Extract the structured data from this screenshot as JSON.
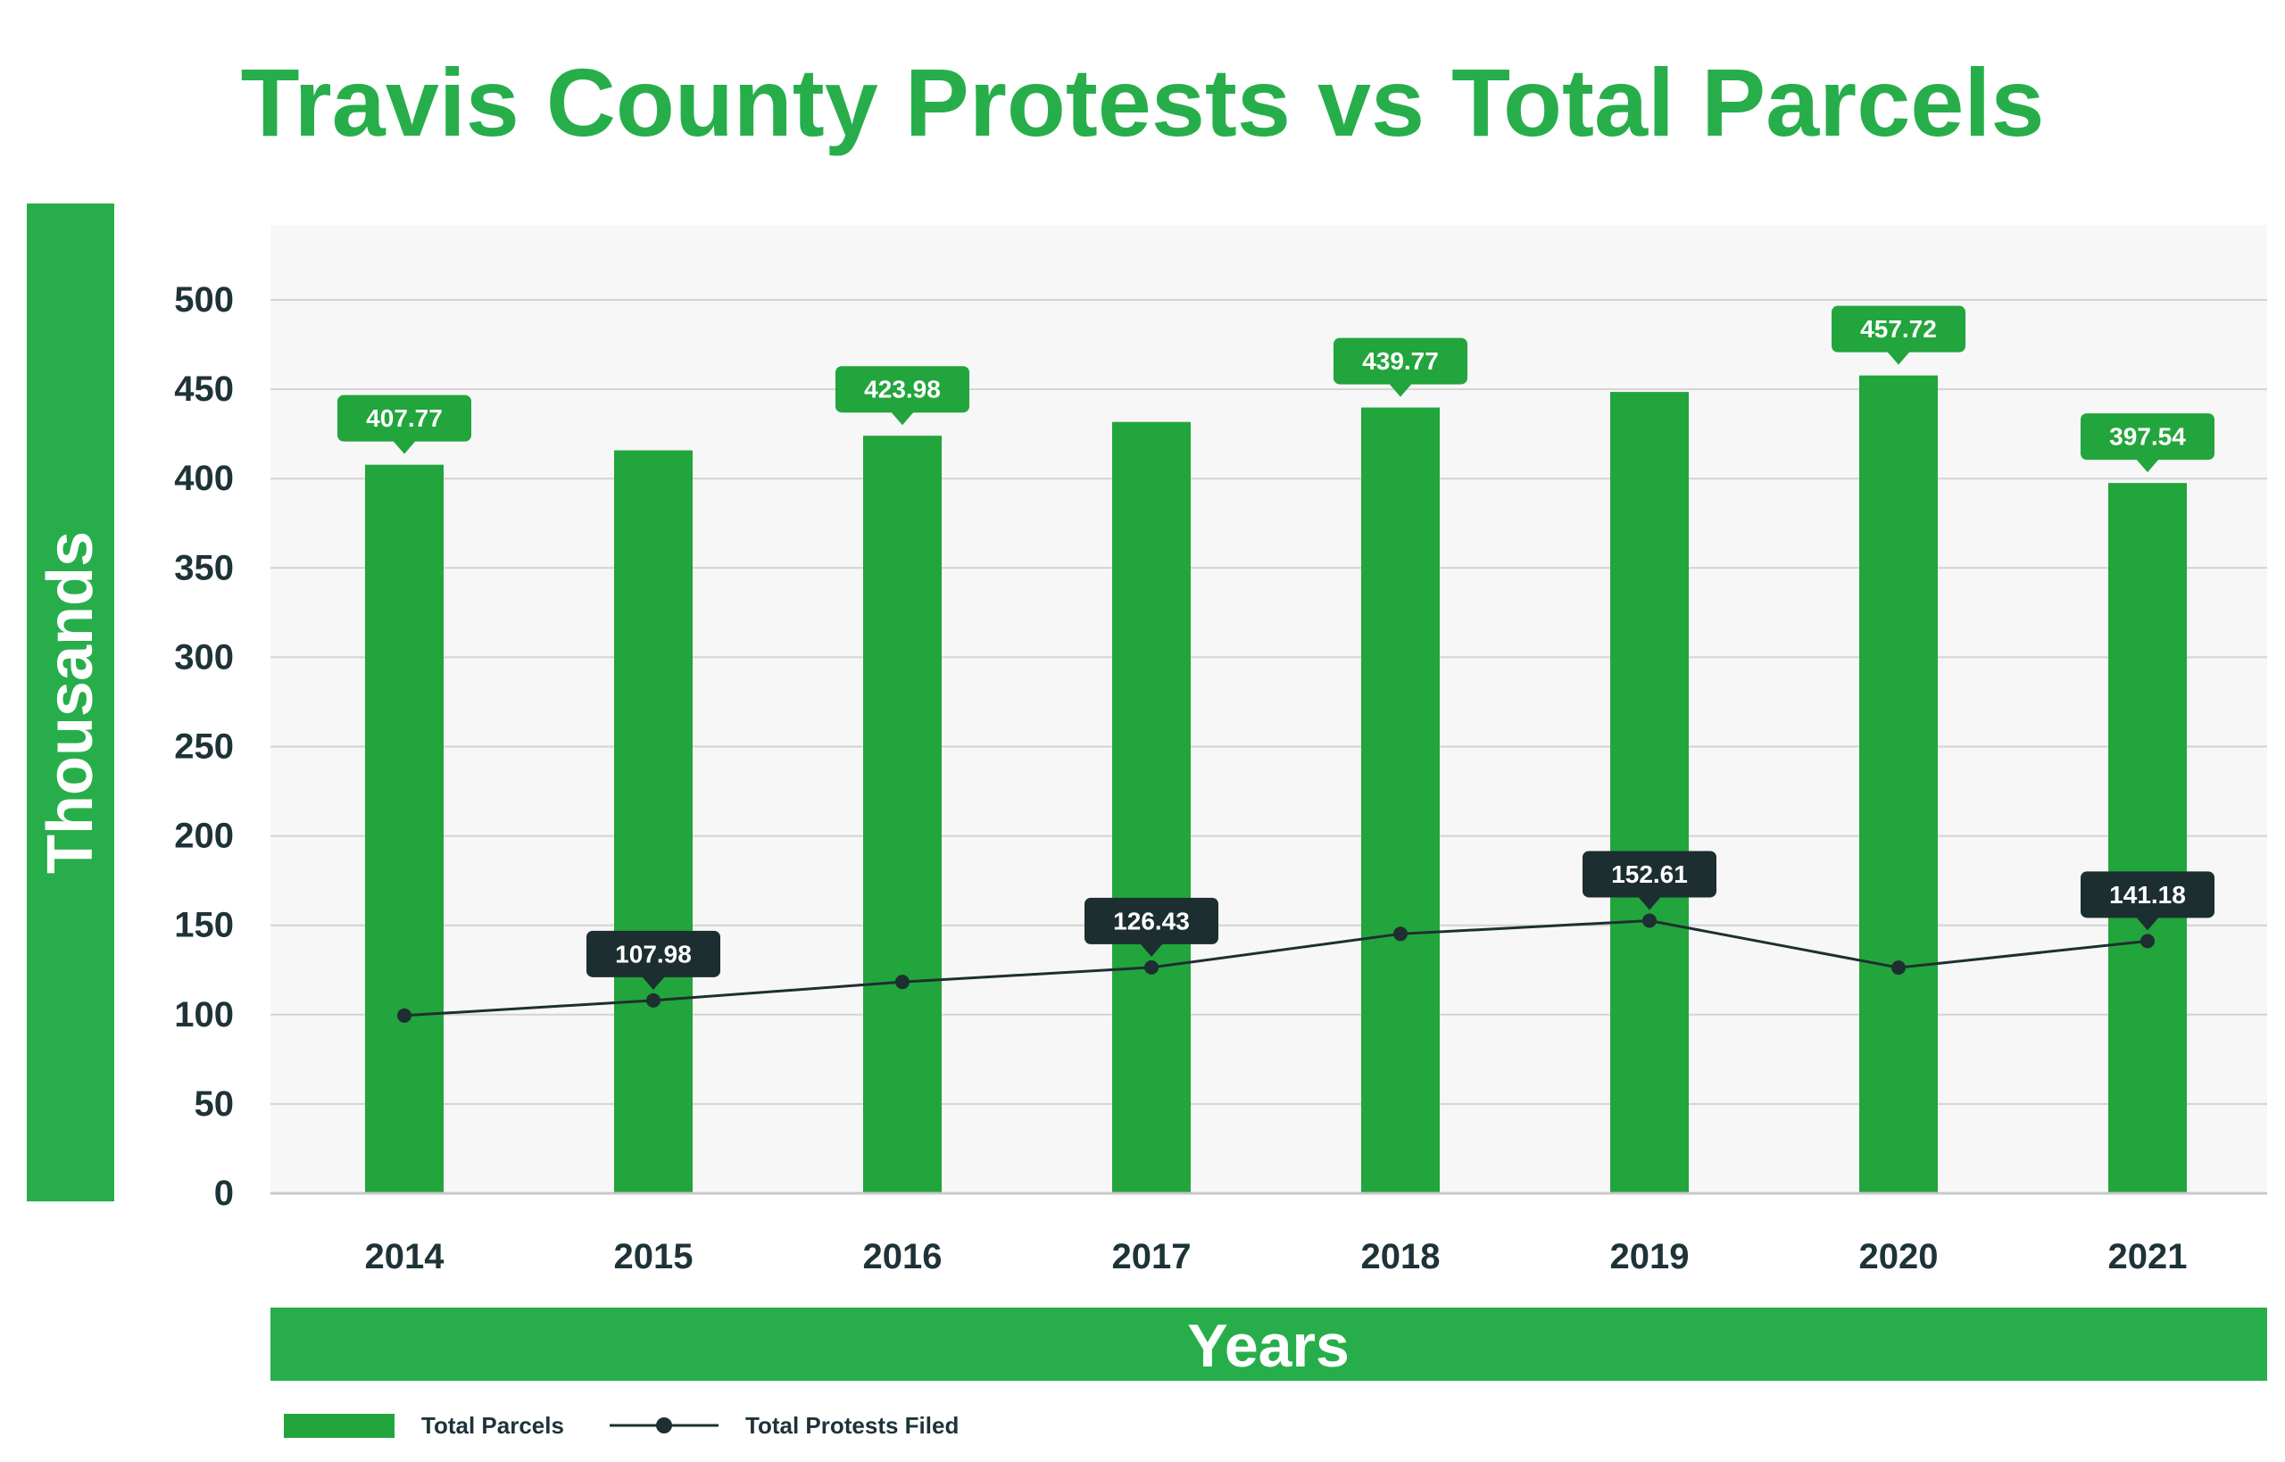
{
  "chart_data": {
    "type": "bar",
    "title": "Travis County Protests vs Total Parcels",
    "xlabel": "Years",
    "ylabel": "Thousands",
    "categories": [
      "2014",
      "2015",
      "2016",
      "2017",
      "2018",
      "2019",
      "2020",
      "2021"
    ],
    "ylim": [
      0,
      500
    ],
    "yticks": [
      0,
      50,
      100,
      150,
      200,
      250,
      300,
      350,
      400,
      450,
      500
    ],
    "grid": true,
    "legend_position": "bottom-left",
    "series": [
      {
        "name": "Total Parcels",
        "type": "bar",
        "color": "#22a53c",
        "values": [
          407.77,
          415.8,
          423.98,
          431.7,
          439.77,
          448.5,
          457.72,
          397.54
        ],
        "labeled": [
          true,
          false,
          true,
          false,
          true,
          false,
          true,
          true
        ],
        "label_color": "#22a53c"
      },
      {
        "name": "Total Protests Filed",
        "type": "line",
        "color": "#1e2f31",
        "values": [
          99.5,
          107.98,
          118.3,
          126.43,
          145.2,
          152.61,
          126.3,
          141.18
        ],
        "labeled": [
          false,
          true,
          false,
          true,
          false,
          true,
          false,
          true
        ],
        "label_color": "#1d2e30"
      }
    ]
  },
  "colors": {
    "accent": "#27ae4b",
    "bar": "#22a53c",
    "line": "#1e2f31",
    "plot_background": "#f7f7f7",
    "grid": "#d3d3d3",
    "axis_text": "#1e3338"
  }
}
